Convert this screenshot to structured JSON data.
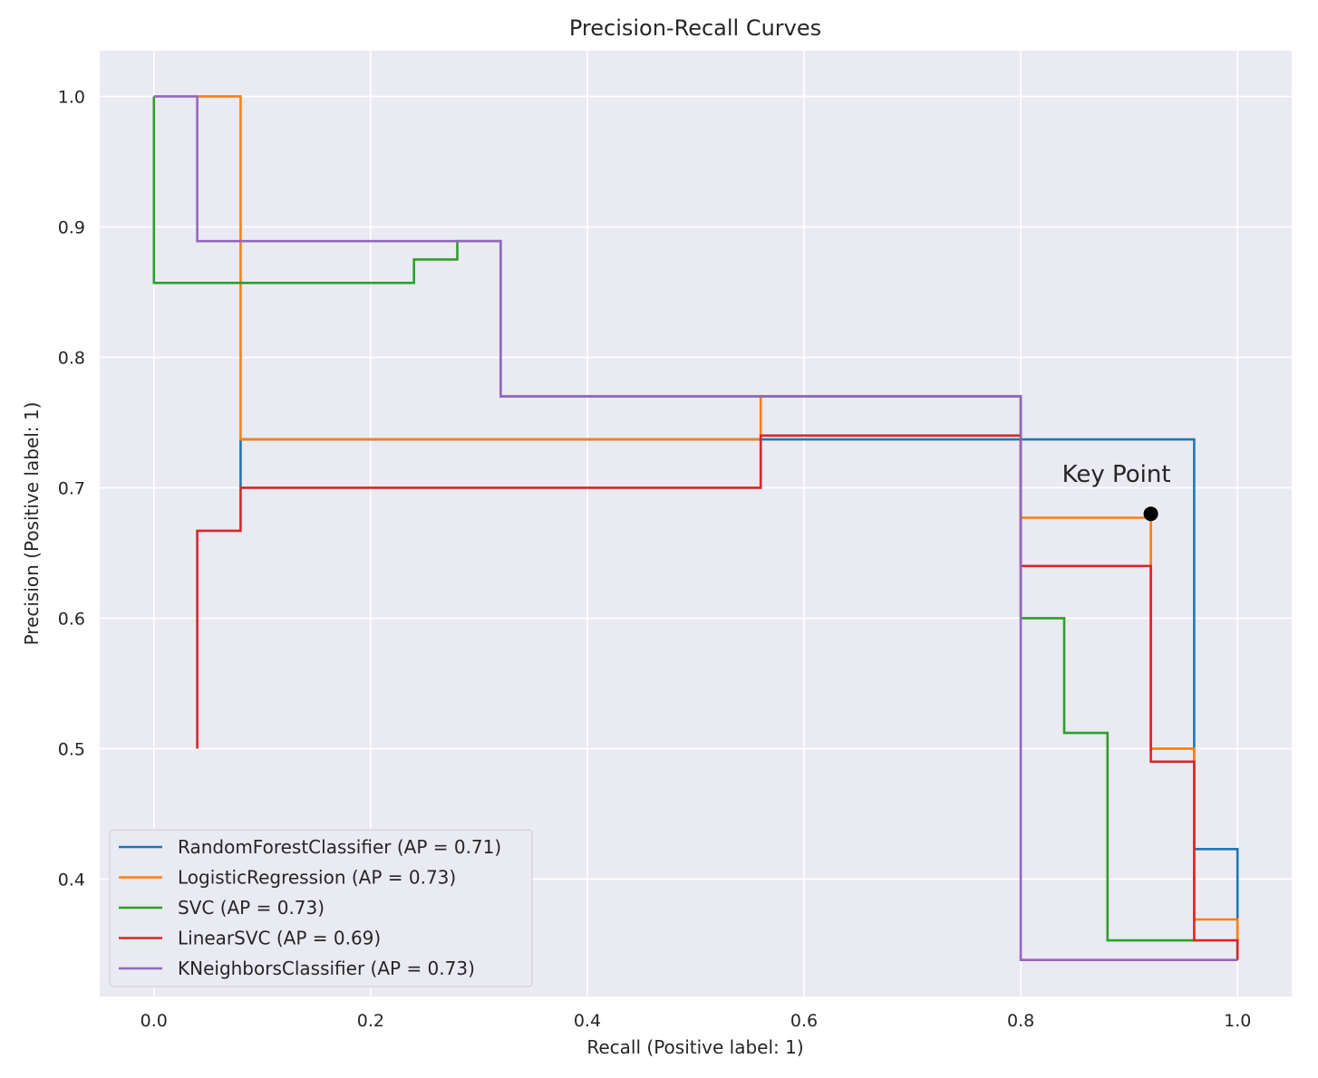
{
  "chart_data": {
    "type": "line",
    "title": "Precision-Recall Curves",
    "xlabel": "Recall (Positive label: 1)",
    "ylabel": "Precision (Positive label: 1)",
    "xlim": [
      -0.05,
      1.05
    ],
    "ylim": [
      0.31,
      1.035
    ],
    "xticks": [
      0.0,
      0.2,
      0.4,
      0.6,
      0.8,
      1.0
    ],
    "xtick_labels": [
      "0.0",
      "0.2",
      "0.4",
      "0.6",
      "0.8",
      "1.0"
    ],
    "yticks": [
      0.4,
      0.5,
      0.6,
      0.7,
      0.8,
      0.9,
      1.0
    ],
    "ytick_labels": [
      "0.4",
      "0.5",
      "0.6",
      "0.7",
      "0.8",
      "0.9",
      "1.0"
    ],
    "grid": true,
    "legend_position": "lower-left",
    "series": [
      {
        "name": "RandomForestClassifier (AP = 0.71)",
        "color": "#1f77b4",
        "recall": [
          0.08,
          0.08,
          0.96,
          0.96,
          1.0,
          1.0
        ],
        "precision": [
          0.7,
          0.737,
          0.737,
          0.423,
          0.423,
          0.338
        ]
      },
      {
        "name": "LogisticRegression (AP = 0.73)",
        "color": "#ff7f0e",
        "recall": [
          0.04,
          0.08,
          0.08,
          0.56,
          0.56,
          0.8,
          0.8,
          0.92,
          0.92,
          0.96,
          0.96,
          1.0,
          1.0
        ],
        "precision": [
          1.0,
          1.0,
          0.737,
          0.737,
          0.77,
          0.77,
          0.677,
          0.677,
          0.5,
          0.5,
          0.369,
          0.369,
          0.338
        ]
      },
      {
        "name": "SVC (AP = 0.73)",
        "color": "#2ca02c",
        "recall": [
          0.0,
          0.0,
          0.24,
          0.24,
          0.28,
          0.28,
          0.32,
          0.32,
          0.8,
          0.8,
          0.84,
          0.84,
          0.88,
          0.88,
          0.96
        ],
        "precision": [
          1.0,
          0.857,
          0.857,
          0.875,
          0.875,
          0.889,
          0.889,
          0.77,
          0.77,
          0.6,
          0.6,
          0.512,
          0.512,
          0.353,
          0.353
        ]
      },
      {
        "name": "LinearSVC (AP = 0.69)",
        "color": "#d62728",
        "recall": [
          0.04,
          0.04,
          0.08,
          0.08,
          0.56,
          0.56,
          0.8,
          0.8,
          0.92,
          0.92,
          0.96,
          0.96,
          1.0,
          1.0
        ],
        "precision": [
          0.5,
          0.667,
          0.667,
          0.7,
          0.7,
          0.74,
          0.74,
          0.64,
          0.64,
          0.49,
          0.49,
          0.353,
          0.353,
          0.338
        ]
      },
      {
        "name": "KNeighborsClassifier (AP = 0.73)",
        "color": "#9467bd",
        "recall": [
          0.0,
          0.04,
          0.04,
          0.32,
          0.32,
          0.8,
          0.8,
          1.0
        ],
        "precision": [
          1.0,
          1.0,
          0.889,
          0.889,
          0.77,
          0.77,
          0.338,
          0.338
        ]
      }
    ],
    "annotations": [
      {
        "text": "Key Point",
        "x": 0.92,
        "y": 0.68,
        "marker": "circle",
        "color": "#000000"
      }
    ]
  }
}
